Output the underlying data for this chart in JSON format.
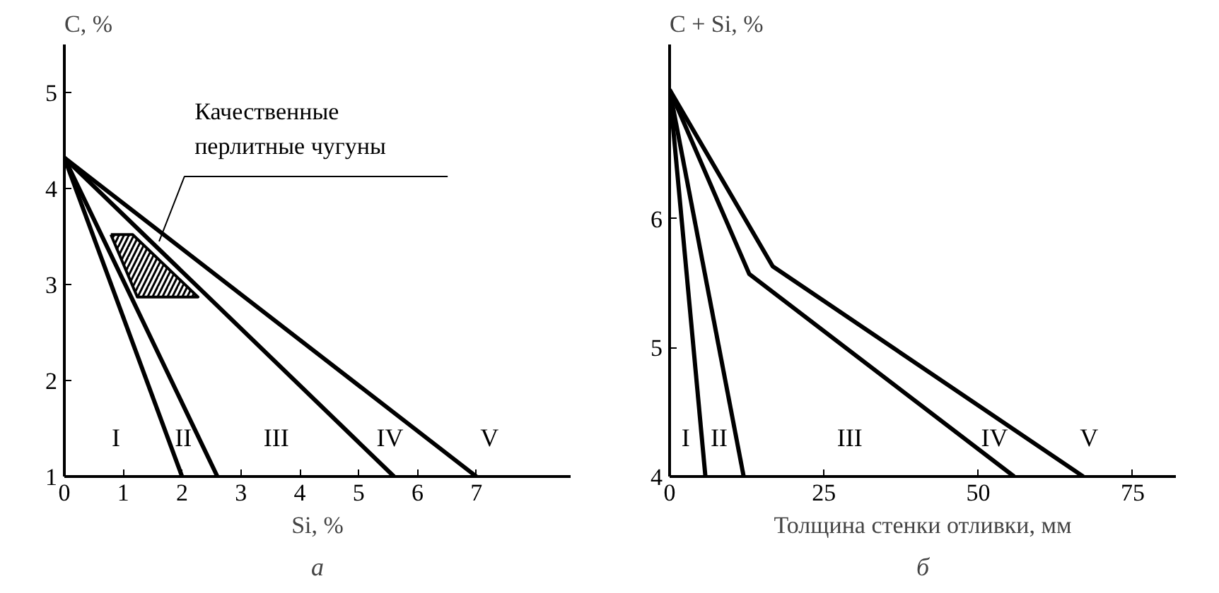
{
  "chart_data": [
    {
      "type": "line",
      "ylabel": "C, %",
      "xlabel": "Si, %",
      "xlim": [
        0,
        8.6
      ],
      "ylim": [
        1,
        5.5
      ],
      "xticks": [
        0,
        1,
        2,
        3,
        4,
        5,
        6,
        7
      ],
      "yticks": [
        1,
        2,
        3,
        4,
        5
      ],
      "line_style": "solid",
      "marker": "none",
      "series": [
        {
          "color": "#000000",
          "x": [
            0,
            2.0
          ],
          "values": [
            4.32,
            1
          ]
        },
        {
          "color": "#000000",
          "x": [
            0,
            2.6
          ],
          "values": [
            4.32,
            1
          ]
        },
        {
          "color": "#000000",
          "x": [
            0,
            5.6
          ],
          "values": [
            4.32,
            1
          ]
        },
        {
          "color": "#000000",
          "x": [
            0,
            7.0
          ],
          "values": [
            4.32,
            1
          ]
        },
        {
          "type": "area",
          "color": "#000000",
          "x": [
            0.79,
            1.16,
            2.27,
            1.24,
            0.79
          ],
          "values": [
            3.52,
            3.52,
            2.87,
            2.87,
            3.52
          ]
        }
      ],
      "annotations": [
        {
          "text": "Качественные\nперлитные чугуны",
          "x": 1.61,
          "y": 3.45
        },
        "I",
        "II",
        "III",
        "IV",
        "V"
      ],
      "title": "а"
    },
    {
      "type": "line",
      "ylabel": "C + Si, %",
      "xlabel": "Толщина стенки отливки, мм",
      "xlim": [
        0,
        82
      ],
      "ylim": [
        4,
        7.35
      ],
      "xticks": [
        0,
        25,
        50,
        75
      ],
      "yticks": [
        4,
        5,
        6
      ],
      "line_style": "solid",
      "marker": "none",
      "series": [
        {
          "color": "#000000",
          "x": [
            0,
            5.8
          ],
          "values": [
            7.0,
            4
          ]
        },
        {
          "color": "#000000",
          "x": [
            0,
            12.0
          ],
          "values": [
            7.0,
            4
          ]
        },
        {
          "color": "#000000",
          "x": [
            0,
            12.9,
            55.8
          ],
          "values": [
            7.0,
            5.57,
            4
          ]
        },
        {
          "color": "#000000",
          "x": [
            0,
            16.7,
            67.0
          ],
          "values": [
            7.0,
            5.63,
            4
          ]
        }
      ],
      "annotations": [
        "I",
        "II",
        "III",
        "IV",
        "V"
      ],
      "title": "б"
    }
  ]
}
